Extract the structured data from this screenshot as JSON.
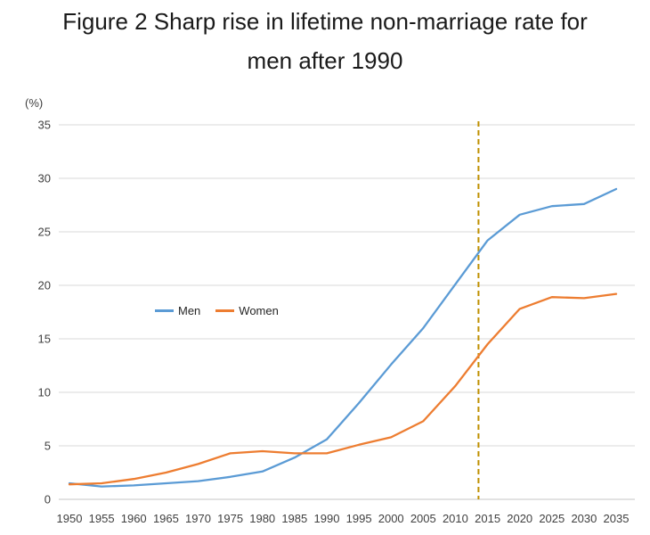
{
  "figure": {
    "title_line1": "Figure 2 Sharp rise in lifetime non-marriage rate for",
    "title_line2": "men after 1990"
  },
  "chart_data": {
    "type": "line",
    "title": "Figure 2 Sharp rise in lifetime non-marriage rate for men after 1990",
    "unit_label": "(%)",
    "categories": [
      1950,
      1955,
      1960,
      1965,
      1970,
      1975,
      1980,
      1985,
      1990,
      1995,
      2000,
      2005,
      2010,
      2015,
      2020,
      2025,
      2030,
      2035
    ],
    "series": [
      {
        "name": "Men",
        "color": "#5B9BD5",
        "values": [
          1.5,
          1.2,
          1.3,
          1.5,
          1.7,
          2.1,
          2.6,
          3.9,
          5.6,
          9.0,
          12.6,
          16.0,
          20.1,
          24.2,
          26.6,
          27.4,
          27.6,
          29.0
        ]
      },
      {
        "name": "Women",
        "color": "#ED7D31",
        "values": [
          1.4,
          1.5,
          1.9,
          2.5,
          3.3,
          4.3,
          4.5,
          4.3,
          4.3,
          5.1,
          5.8,
          7.3,
          10.6,
          14.5,
          17.8,
          18.9,
          18.8,
          19.2
        ]
      }
    ],
    "ylim": [
      0,
      35
    ],
    "yticks": [
      0,
      5,
      10,
      15,
      20,
      25,
      30,
      35
    ],
    "grid": true,
    "legend_position": "inside-left-middle",
    "divider_line": {
      "year": 2013.6,
      "color": "#BF9000",
      "style": "dashed"
    }
  }
}
